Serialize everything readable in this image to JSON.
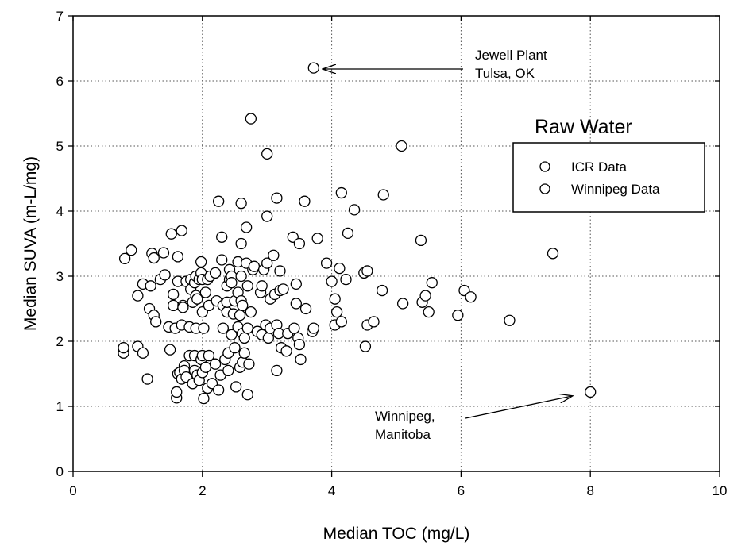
{
  "chart_data": {
    "type": "scatter",
    "xlabel": "Median TOC (mg/L)",
    "ylabel": "Median SUVA (m-L/mg)",
    "xlim": [
      0,
      10
    ],
    "ylim": [
      0,
      7
    ],
    "x_ticks": [
      "0",
      "2",
      "4",
      "6",
      "8",
      "10"
    ],
    "y_ticks": [
      "0",
      "1",
      "2",
      "3",
      "4",
      "5",
      "6",
      "7"
    ],
    "grid": "dotted",
    "legend": {
      "title": "Raw Water",
      "placement": "right",
      "entries": [
        "ICR Data",
        "Winnipeg Data"
      ]
    },
    "annotations": [
      {
        "lines": [
          "Jewell Plant",
          "Tulsa, OK"
        ],
        "points_to": [
          3.72,
          6.2
        ]
      },
      {
        "lines": [
          "Winnipeg,",
          "Manitoba"
        ],
        "points_to": [
          8.0,
          1.22
        ]
      }
    ],
    "series": [
      {
        "name": "ICR Data",
        "points": [
          [
            0.78,
            1.82
          ],
          [
            0.78,
            1.9
          ],
          [
            0.8,
            3.27
          ],
          [
            0.9,
            3.4
          ],
          [
            1.0,
            1.92
          ],
          [
            1.0,
            2.7
          ],
          [
            1.08,
            2.88
          ],
          [
            1.08,
            1.82
          ],
          [
            1.15,
            1.42
          ],
          [
            1.18,
            2.5
          ],
          [
            1.2,
            2.85
          ],
          [
            1.22,
            3.35
          ],
          [
            1.25,
            3.28
          ],
          [
            1.25,
            2.4
          ],
          [
            1.28,
            2.3
          ],
          [
            1.35,
            2.95
          ],
          [
            1.4,
            3.36
          ],
          [
            1.42,
            3.02
          ],
          [
            1.48,
            2.22
          ],
          [
            1.5,
            1.87
          ],
          [
            1.52,
            3.65
          ],
          [
            1.55,
            2.72
          ],
          [
            1.55,
            2.55
          ],
          [
            1.58,
            2.2
          ],
          [
            1.6,
            1.13
          ],
          [
            1.6,
            1.22
          ],
          [
            1.62,
            1.5
          ],
          [
            1.62,
            3.3
          ],
          [
            1.62,
            2.92
          ],
          [
            1.65,
            1.52
          ],
          [
            1.68,
            3.7
          ],
          [
            1.68,
            2.25
          ],
          [
            1.68,
            1.42
          ],
          [
            1.7,
            2.55
          ],
          [
            1.7,
            2.52
          ],
          [
            1.72,
            1.62
          ],
          [
            1.72,
            1.55
          ],
          [
            1.75,
            2.92
          ],
          [
            1.75,
            1.45
          ],
          [
            1.8,
            1.78
          ],
          [
            1.8,
            2.22
          ],
          [
            1.82,
            2.95
          ],
          [
            1.82,
            2.8
          ],
          [
            1.85,
            2.6
          ],
          [
            1.85,
            1.35
          ],
          [
            1.88,
            2.9
          ],
          [
            1.88,
            1.78
          ],
          [
            1.88,
            1.55
          ],
          [
            1.9,
            3.0
          ],
          [
            1.9,
            2.7
          ],
          [
            1.9,
            2.2
          ],
          [
            1.92,
            2.65
          ],
          [
            1.92,
            1.48
          ],
          [
            1.95,
            2.95
          ],
          [
            1.95,
            1.4
          ],
          [
            1.98,
            3.22
          ],
          [
            1.98,
            3.05
          ],
          [
            1.98,
            1.72
          ],
          [
            2.0,
            2.95
          ],
          [
            2.0,
            2.45
          ],
          [
            2.0,
            1.78
          ],
          [
            2.0,
            1.52
          ],
          [
            2.02,
            2.2
          ],
          [
            2.02,
            1.12
          ],
          [
            2.05,
            2.75
          ],
          [
            2.05,
            1.6
          ],
          [
            2.08,
            2.95
          ],
          [
            2.08,
            1.28
          ],
          [
            2.1,
            1.78
          ],
          [
            2.1,
            2.55
          ],
          [
            2.12,
            3.0
          ],
          [
            2.15,
            1.35
          ],
          [
            2.2,
            1.65
          ],
          [
            2.2,
            3.05
          ],
          [
            2.22,
            2.62
          ],
          [
            2.25,
            1.25
          ],
          [
            2.25,
            4.15
          ],
          [
            2.28,
            1.48
          ],
          [
            2.3,
            3.25
          ],
          [
            2.3,
            3.6
          ],
          [
            2.32,
            2.55
          ],
          [
            2.32,
            2.2
          ],
          [
            2.35,
            1.72
          ],
          [
            2.38,
            2.45
          ],
          [
            2.38,
            2.6
          ],
          [
            2.38,
            2.85
          ],
          [
            2.4,
            1.82
          ],
          [
            2.4,
            1.55
          ],
          [
            2.42,
            3.1
          ],
          [
            2.42,
            2.95
          ],
          [
            2.45,
            3.0
          ],
          [
            2.45,
            2.9
          ],
          [
            2.45,
            2.1
          ],
          [
            2.48,
            2.42
          ],
          [
            2.5,
            2.62
          ],
          [
            2.5,
            1.9
          ],
          [
            2.52,
            1.3
          ],
          [
            2.55,
            3.22
          ],
          [
            2.55,
            2.75
          ],
          [
            2.55,
            2.22
          ],
          [
            2.58,
            2.4
          ],
          [
            2.58,
            1.6
          ],
          [
            2.6,
            4.12
          ],
          [
            2.6,
            3.5
          ],
          [
            2.6,
            3.0
          ],
          [
            2.6,
            2.62
          ],
          [
            2.62,
            2.55
          ],
          [
            2.62,
            2.12
          ],
          [
            2.62,
            1.68
          ],
          [
            2.65,
            2.05
          ],
          [
            2.65,
            1.82
          ],
          [
            2.68,
            3.75
          ],
          [
            2.68,
            3.2
          ],
          [
            2.7,
            2.85
          ],
          [
            2.7,
            2.2
          ],
          [
            2.7,
            1.18
          ],
          [
            2.72,
            1.65
          ],
          [
            2.75,
            5.42
          ],
          [
            2.75,
            2.45
          ],
          [
            2.78,
            3.1
          ],
          [
            2.8,
            3.15
          ],
          [
            2.85,
            2.15
          ],
          [
            2.9,
            2.75
          ],
          [
            2.92,
            2.85
          ],
          [
            2.92,
            2.1
          ],
          [
            2.95,
            3.1
          ],
          [
            2.98,
            2.25
          ],
          [
            3.0,
            4.88
          ],
          [
            3.0,
            3.2
          ],
          [
            3.0,
            3.92
          ],
          [
            3.02,
            2.05
          ],
          [
            3.05,
            2.65
          ],
          [
            3.05,
            2.2
          ],
          [
            3.1,
            3.32
          ],
          [
            3.12,
            2.72
          ],
          [
            3.15,
            4.2
          ],
          [
            3.15,
            2.25
          ],
          [
            3.15,
            1.55
          ],
          [
            3.18,
            2.12
          ],
          [
            3.2,
            3.08
          ],
          [
            3.2,
            2.78
          ],
          [
            3.22,
            1.9
          ],
          [
            3.25,
            2.8
          ],
          [
            3.3,
            1.85
          ],
          [
            3.32,
            2.12
          ],
          [
            3.4,
            3.6
          ],
          [
            3.42,
            2.2
          ],
          [
            3.45,
            2.58
          ],
          [
            3.45,
            2.88
          ],
          [
            3.48,
            2.05
          ],
          [
            3.5,
            3.5
          ],
          [
            3.5,
            1.95
          ],
          [
            3.52,
            1.72
          ],
          [
            3.58,
            4.15
          ],
          [
            3.6,
            2.5
          ],
          [
            3.7,
            2.15
          ],
          [
            3.72,
            2.2
          ],
          [
            3.78,
            3.58
          ],
          [
            3.92,
            3.2
          ],
          [
            4.0,
            2.92
          ],
          [
            4.05,
            2.25
          ],
          [
            4.05,
            2.65
          ],
          [
            4.08,
            2.45
          ],
          [
            4.12,
            3.12
          ],
          [
            4.15,
            2.3
          ],
          [
            4.15,
            4.28
          ],
          [
            4.22,
            2.95
          ],
          [
            4.25,
            3.66
          ],
          [
            4.35,
            4.02
          ],
          [
            4.5,
            3.05
          ],
          [
            4.52,
            1.92
          ],
          [
            4.55,
            3.08
          ],
          [
            4.55,
            2.25
          ],
          [
            4.65,
            2.3
          ],
          [
            4.78,
            2.78
          ],
          [
            4.8,
            4.25
          ],
          [
            5.08,
            5.0
          ],
          [
            5.1,
            2.58
          ],
          [
            5.38,
            3.55
          ],
          [
            5.4,
            2.6
          ],
          [
            5.45,
            2.7
          ],
          [
            5.5,
            2.45
          ],
          [
            5.55,
            2.9
          ],
          [
            5.95,
            2.4
          ],
          [
            6.05,
            2.78
          ],
          [
            6.15,
            2.68
          ],
          [
            6.75,
            2.32
          ],
          [
            7.42,
            3.35
          ],
          [
            3.72,
            6.2
          ]
        ]
      },
      {
        "name": "Winnipeg Data",
        "points": [
          [
            8.0,
            1.22
          ]
        ]
      }
    ]
  }
}
